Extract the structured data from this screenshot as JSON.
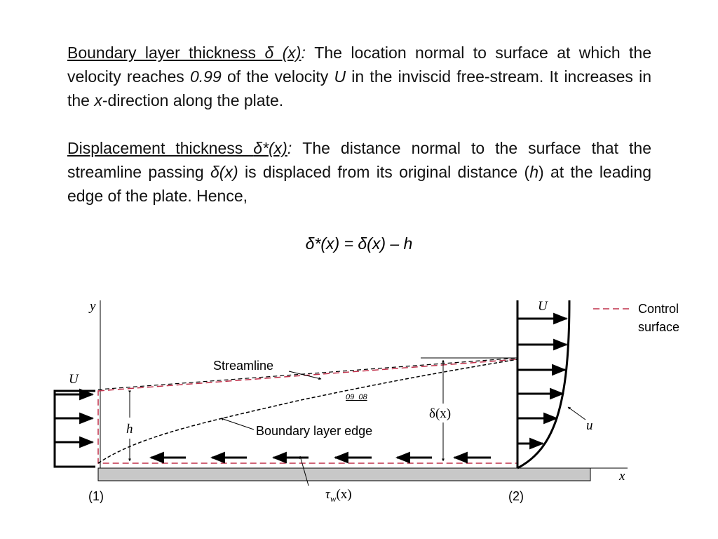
{
  "paragraphs": [
    [
      "Boundary layer thickness ",
      "δ (x)",
      ":",
      " The location normal to surface at which the velocity reaches ",
      "0.99",
      " of the velocity ",
      "U",
      " in the inviscid free-stream.  It increases in the ",
      "x",
      "-direction along the plate."
    ],
    [
      "Displacement thickness ",
      "δ*(x)",
      ":",
      " The distance normal to the surface that the streamline passing ",
      "δ(x)",
      " is displaced from its original distance (",
      "h",
      ") at the leading edge of the plate.  Hence,"
    ]
  ],
  "equation": "δ*(x) = δ(x) – h",
  "diagram": {
    "y_axis": "y",
    "x_axis": "x",
    "U_left": "U",
    "U_right": "U",
    "legend": [
      "Control",
      "surface"
    ],
    "streamline": "Streamline",
    "figure_id": "09_08",
    "boundary_layer_edge": "Boundary layer edge",
    "h": "h",
    "delta": "δ(x)",
    "u": "u",
    "station_1": "(1)",
    "station_2": "(2)",
    "shear": {
      "base": "τ",
      "sub": "w",
      "arg": "(x)"
    }
  }
}
